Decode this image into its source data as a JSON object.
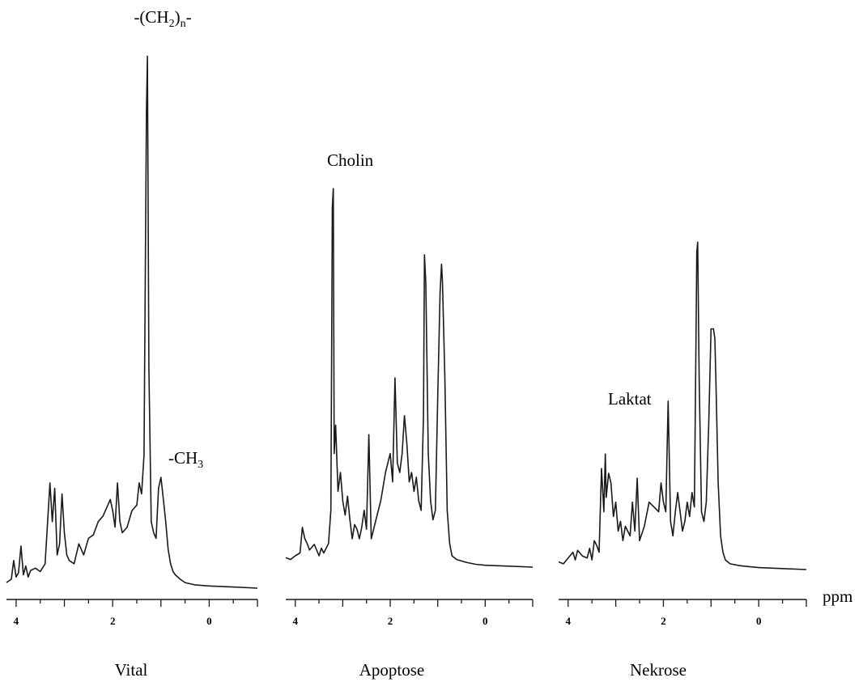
{
  "chart_data": [
    {
      "type": "line",
      "name": "Vital",
      "xlabel": "Vital",
      "x_reversed": true,
      "xlim": [
        4.2,
        -1.0
      ],
      "xticks": [
        4,
        2,
        0
      ],
      "series": [
        {
          "x": [
            4.2,
            4.1,
            4.05,
            4.0,
            3.95,
            3.9,
            3.85,
            3.8,
            3.75,
            3.7,
            3.6,
            3.5,
            3.4,
            3.3,
            3.25,
            3.2,
            3.15,
            3.1,
            3.05,
            3.0,
            2.95,
            2.9,
            2.8,
            2.7,
            2.6,
            2.5,
            2.4,
            2.3,
            2.2,
            2.1,
            2.05,
            2.0,
            1.95,
            1.9,
            1.85,
            1.8,
            1.7,
            1.6,
            1.5,
            1.45,
            1.4,
            1.35,
            1.3,
            1.28,
            1.25,
            1.2,
            1.15,
            1.1,
            1.05,
            1.0,
            0.95,
            0.9,
            0.85,
            0.8,
            0.75,
            0.7,
            0.6,
            0.5,
            0.3,
            0.0,
            -0.5,
            -1.0
          ],
          "y": [
            5,
            8,
            25,
            10,
            14,
            38,
            12,
            20,
            10,
            16,
            18,
            15,
            22,
            95,
            60,
            90,
            30,
            40,
            85,
            50,
            30,
            25,
            22,
            40,
            30,
            45,
            48,
            60,
            65,
            75,
            80,
            70,
            55,
            95,
            60,
            50,
            55,
            70,
            75,
            95,
            85,
            120,
            430,
            480,
            200,
            60,
            50,
            45,
            90,
            100,
            80,
            60,
            35,
            22,
            15,
            12,
            8,
            5,
            3,
            2,
            1,
            0
          ]
        }
      ],
      "annotations": [
        {
          "text": "-(CH₂)ₙ-",
          "x": 1.28
        },
        {
          "text": "-CH₃",
          "x": 0.95
        }
      ]
    },
    {
      "type": "line",
      "name": "Apoptose",
      "xlabel": "Apoptose",
      "x_reversed": true,
      "xlim": [
        4.2,
        -1.0
      ],
      "xticks": [
        4,
        2,
        0
      ],
      "series": [
        {
          "x": [
            4.2,
            4.1,
            4.0,
            3.9,
            3.85,
            3.8,
            3.75,
            3.7,
            3.6,
            3.5,
            3.45,
            3.4,
            3.3,
            3.25,
            3.22,
            3.2,
            3.18,
            3.15,
            3.1,
            3.05,
            3.0,
            2.95,
            2.9,
            2.85,
            2.8,
            2.75,
            2.7,
            2.65,
            2.6,
            2.55,
            2.5,
            2.45,
            2.4,
            2.3,
            2.2,
            2.1,
            2.0,
            1.95,
            1.9,
            1.85,
            1.8,
            1.75,
            1.7,
            1.65,
            1.6,
            1.55,
            1.5,
            1.45,
            1.4,
            1.35,
            1.3,
            1.28,
            1.25,
            1.2,
            1.15,
            1.1,
            1.05,
            1.0,
            0.95,
            0.92,
            0.9,
            0.85,
            0.8,
            0.75,
            0.7,
            0.6,
            0.4,
            0.2,
            0.0,
            -0.5,
            -1.0
          ],
          "y": [
            10,
            8,
            12,
            15,
            42,
            30,
            25,
            18,
            24,
            12,
            20,
            15,
            25,
            60,
            380,
            400,
            120,
            150,
            80,
            100,
            70,
            55,
            75,
            50,
            30,
            45,
            40,
            30,
            42,
            60,
            40,
            140,
            30,
            50,
            70,
            100,
            120,
            90,
            200,
            110,
            100,
            120,
            160,
            130,
            90,
            100,
            80,
            95,
            70,
            60,
            160,
            330,
            300,
            120,
            70,
            50,
            60,
            180,
            290,
            320,
            300,
            200,
            60,
            25,
            12,
            8,
            5,
            3,
            2,
            1,
            0
          ]
        }
      ],
      "annotations": [
        {
          "text": "Cholin",
          "x": 3.2
        }
      ]
    },
    {
      "type": "line",
      "name": "Nekrose",
      "xlabel": "Nekrose",
      "x_reversed": true,
      "xlim": [
        4.2,
        -1.0
      ],
      "xticks": [
        4,
        2,
        0
      ],
      "series": [
        {
          "x": [
            4.2,
            4.1,
            4.0,
            3.9,
            3.85,
            3.8,
            3.7,
            3.6,
            3.55,
            3.5,
            3.45,
            3.4,
            3.35,
            3.3,
            3.25,
            3.22,
            3.2,
            3.15,
            3.1,
            3.05,
            3.0,
            2.95,
            2.9,
            2.85,
            2.8,
            2.7,
            2.65,
            2.6,
            2.55,
            2.5,
            2.4,
            2.3,
            2.2,
            2.1,
            2.05,
            2.0,
            1.95,
            1.9,
            1.85,
            1.8,
            1.75,
            1.7,
            1.65,
            1.6,
            1.55,
            1.5,
            1.45,
            1.4,
            1.35,
            1.32,
            1.3,
            1.28,
            1.25,
            1.2,
            1.15,
            1.1,
            1.05,
            1.0,
            0.95,
            0.92,
            0.9,
            0.85,
            0.8,
            0.75,
            0.7,
            0.6,
            0.4,
            0.2,
            0.0,
            -0.5,
            -1.0
          ],
          "y": [
            8,
            6,
            12,
            18,
            10,
            20,
            14,
            12,
            22,
            10,
            30,
            25,
            18,
            105,
            60,
            120,
            75,
            100,
            90,
            55,
            70,
            40,
            50,
            30,
            45,
            35,
            70,
            40,
            95,
            30,
            45,
            70,
            65,
            60,
            90,
            70,
            60,
            175,
            50,
            35,
            60,
            80,
            60,
            40,
            50,
            70,
            55,
            80,
            65,
            220,
            330,
            340,
            200,
            60,
            50,
            70,
            150,
            250,
            250,
            240,
            200,
            90,
            35,
            18,
            10,
            6,
            4,
            3,
            2,
            1,
            0
          ]
        }
      ],
      "annotations": [
        {
          "text": "Laktat",
          "x": 1.9
        }
      ]
    }
  ],
  "labels": {
    "ch2_prefix": "-(CH",
    "ch2_sub": "2",
    "ch2_mid": ")",
    "ch2_sub2": "n",
    "ch2_suffix": "-",
    "ch3_prefix": "-CH",
    "ch3_sub": "3",
    "cholin": "Cholin",
    "laktat": "Laktat",
    "ppm": "ppm",
    "vital": "Vital",
    "apoptose": "Apoptose",
    "nekrose": "Nekrose"
  }
}
